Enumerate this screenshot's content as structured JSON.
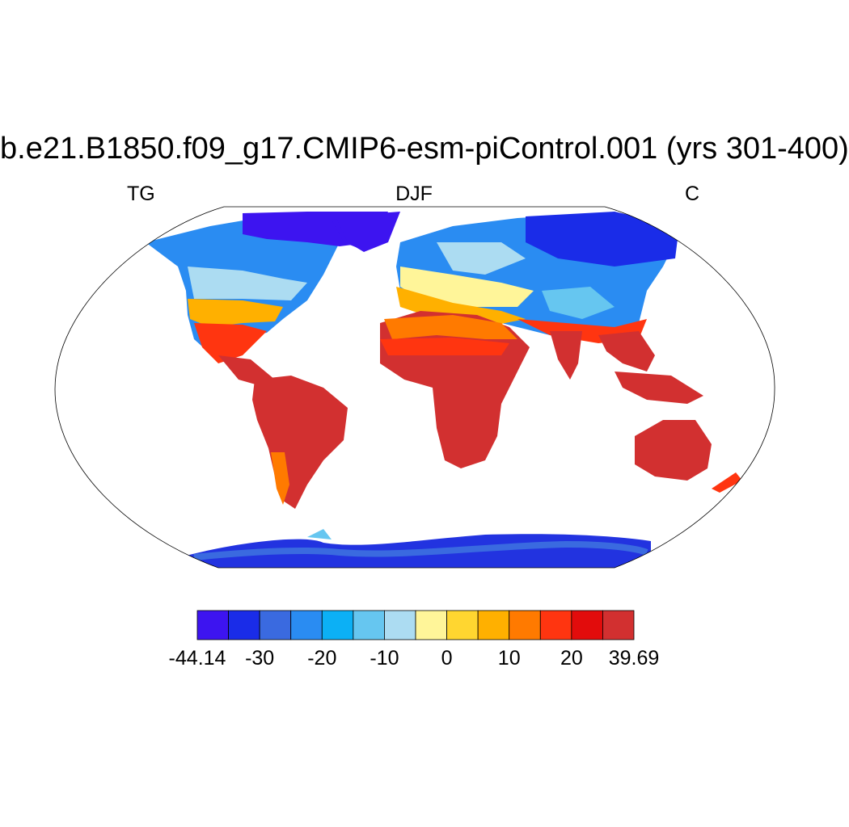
{
  "title": "b.e21.B1850.f09_g17.CMIP6-esm-piControl.001 (yrs 301-400)",
  "left_label": "TG",
  "center_label": "DJF",
  "right_label": "C",
  "colorbar": {
    "colors": [
      "#3d14f0",
      "#1a2ce8",
      "#3a6ae0",
      "#2a8cf2",
      "#0cb0f5",
      "#66c6f0",
      "#acdcf2",
      "#fff599",
      "#ffd630",
      "#ffb000",
      "#ff7a00",
      "#ff3510",
      "#e20c0c",
      "#d23030"
    ],
    "labels": [
      "-44.14",
      "-30",
      "-20",
      "-10",
      "0",
      "10",
      "20",
      "39.69"
    ]
  }
}
